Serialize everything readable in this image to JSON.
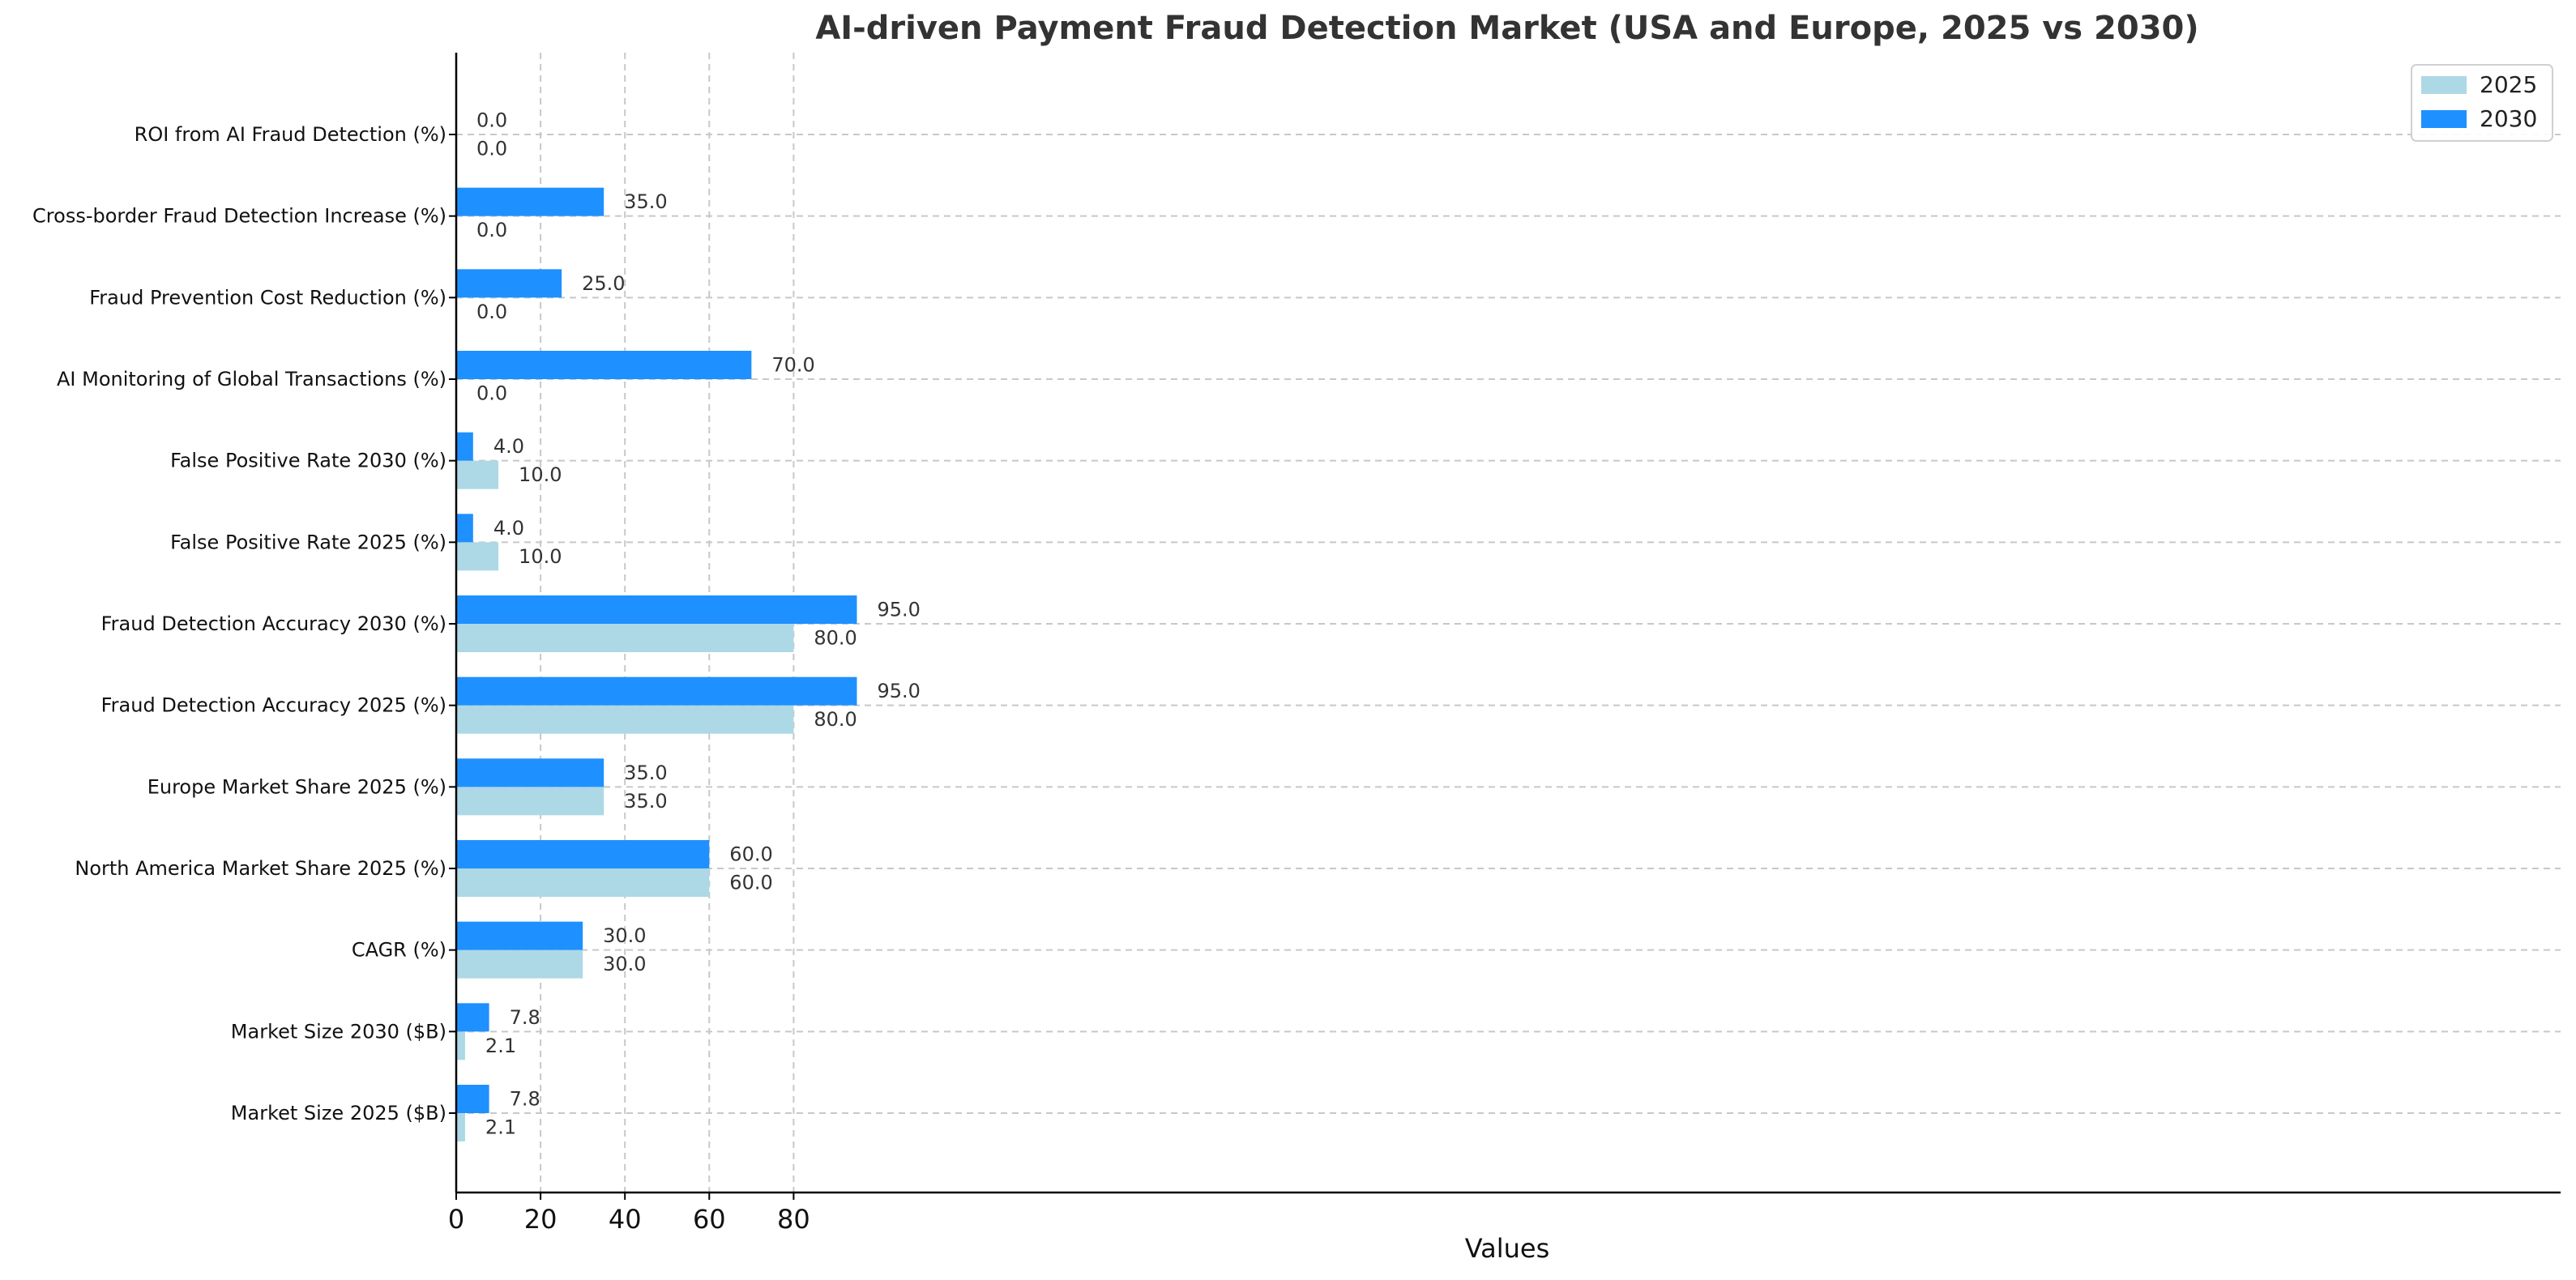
{
  "chart_data": {
    "type": "bar",
    "orientation": "horizontal",
    "title": "AI-driven Payment Fraud Detection Market (USA and Europe, 2025 vs 2030)",
    "xlabel": "Values",
    "ylabel": "",
    "xlim": [
      0,
      100
    ],
    "xticks": [
      0,
      20,
      40,
      60,
      80
    ],
    "grid": true,
    "legend_position": "top-right",
    "categories": [
      "Market Size 2025 ($B)",
      "Market Size 2030 ($B)",
      "CAGR (%)",
      "North America Market Share 2025 (%)",
      "Europe Market Share 2025 (%)",
      "Fraud Detection Accuracy 2025 (%)",
      "Fraud Detection Accuracy 2030 (%)",
      "False Positive Rate 2025 (%)",
      "False Positive Rate 2030 (%)",
      "AI Monitoring of Global Transactions (%)",
      "Fraud Prevention Cost Reduction (%)",
      "Cross-border Fraud Detection Increase (%)",
      "ROI from AI Fraud Detection (%)"
    ],
    "series": [
      {
        "name": "2025",
        "color": "#add8e6",
        "values": [
          2.1,
          2.1,
          30.0,
          60.0,
          35.0,
          80.0,
          80.0,
          10.0,
          10.0,
          0.0,
          0.0,
          0.0,
          0.0
        ]
      },
      {
        "name": "2030",
        "color": "#1e90ff",
        "values": [
          7.8,
          7.8,
          30.0,
          60.0,
          35.0,
          95.0,
          95.0,
          4.0,
          4.0,
          70.0,
          25.0,
          35.0,
          0.0
        ]
      }
    ]
  }
}
